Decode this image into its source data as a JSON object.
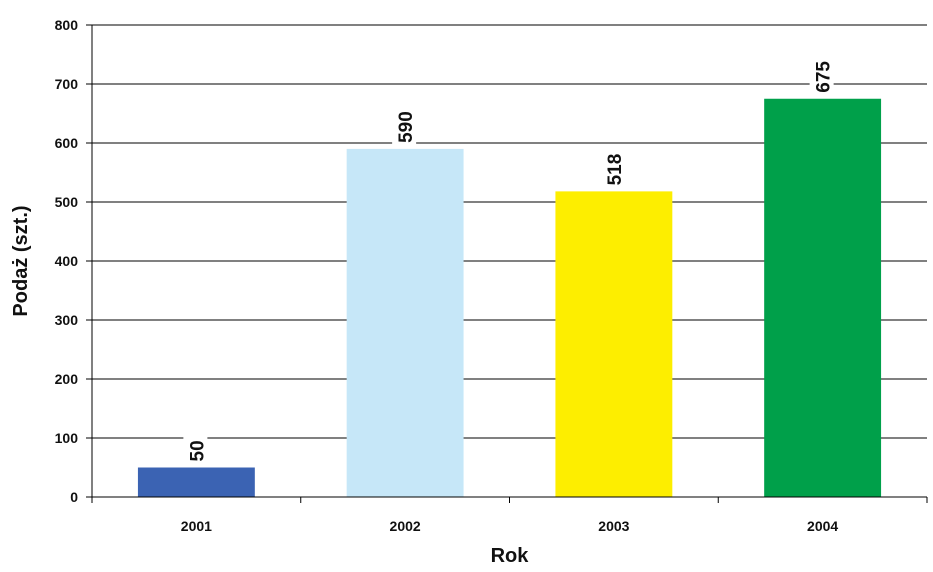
{
  "chart_data": {
    "type": "bar",
    "categories": [
      "2001",
      "2002",
      "2003",
      "2004"
    ],
    "values": [
      50,
      590,
      518,
      675
    ],
    "bar_colors": [
      "#3b63b3",
      "#c6e7f8",
      "#fdee00",
      "#00a04a"
    ],
    "title": "",
    "xlabel": "Rok",
    "ylabel": "Podaż (szt.)",
    "ylim": [
      0,
      800
    ],
    "yticks": [
      0,
      100,
      200,
      300,
      400,
      500,
      600,
      700,
      800
    ],
    "grid": true,
    "data_labels_rotated": true
  }
}
